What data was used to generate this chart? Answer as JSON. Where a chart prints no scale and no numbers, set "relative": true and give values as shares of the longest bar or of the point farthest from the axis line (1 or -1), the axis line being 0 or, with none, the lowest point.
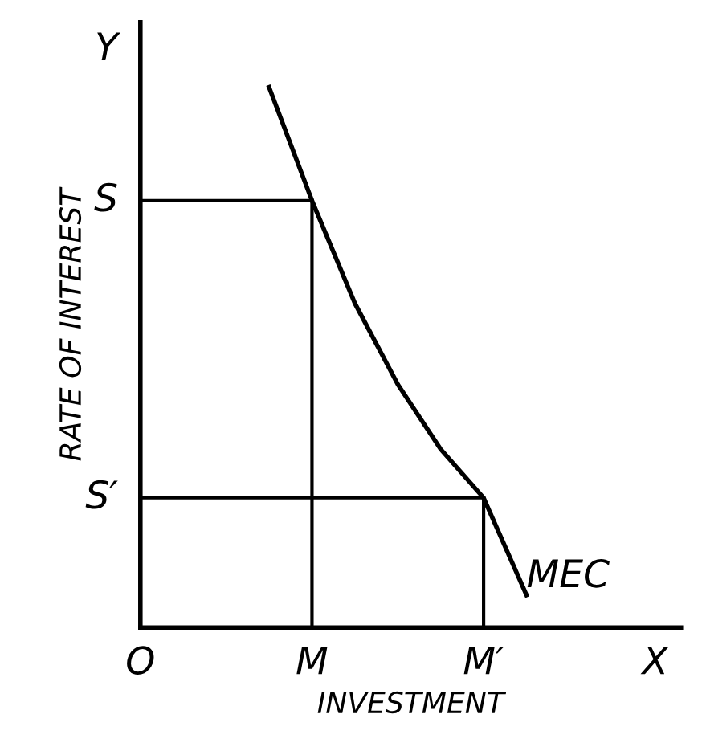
{
  "chart_data": {
    "type": "line",
    "relative": true,
    "xlabel": "INVESTMENT",
    "ylabel": "RATE OF INTEREST",
    "categories": [
      "O",
      null,
      null,
      null,
      "M",
      null,
      null,
      null,
      "M′",
      null,
      null,
      null,
      "X"
    ],
    "annotations": [
      "Y"
    ],
    "series": [
      {
        "name": "MEC",
        "color": "#000000",
        "values": [
          null,
          null,
          null,
          1.0,
          0.79,
          0.6,
          0.45,
          0.33,
          0.24,
          0.06,
          null,
          null,
          null
        ]
      }
    ],
    "ref_lines": [
      {
        "axis": "y",
        "value": 0.79,
        "label": "S",
        "color": "#000000"
      },
      {
        "axis": "y",
        "value": 0.24,
        "label": "S′",
        "color": "#000000"
      },
      {
        "axis": "x",
        "value": "M",
        "color": "#000000"
      },
      {
        "axis": "x",
        "value": "M′",
        "color": "#000000"
      }
    ],
    "legend": false
  }
}
